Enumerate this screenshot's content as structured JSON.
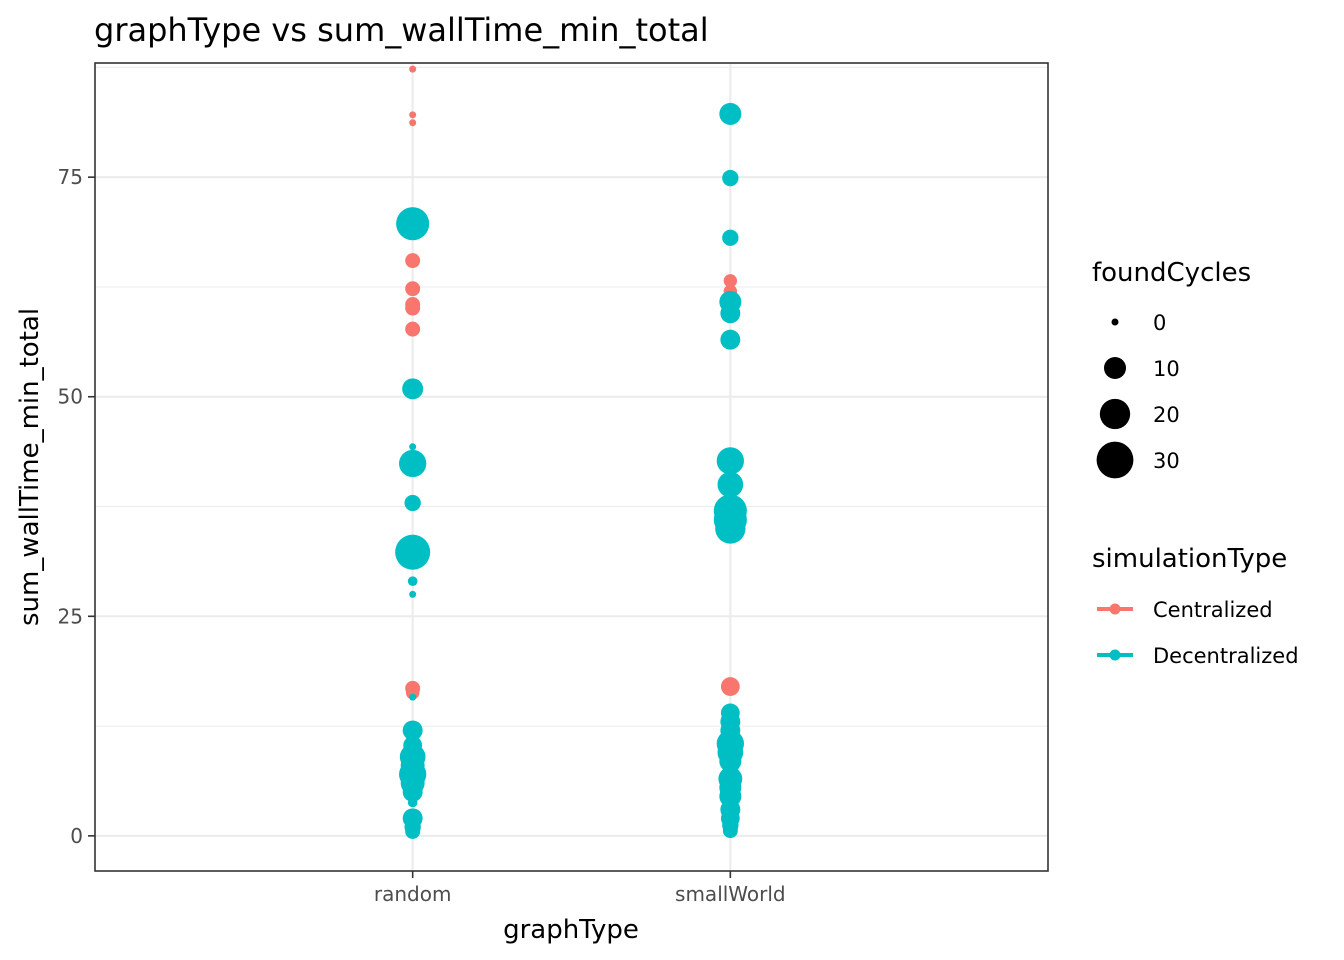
{
  "chart_data": {
    "type": "scatter",
    "title": "graphType  vs  sum_wallTime_min_total",
    "xlabel": "graphType",
    "ylabel": "sum_wallTime_min_total",
    "categories": [
      "random",
      "smallWorld"
    ],
    "ylim": [
      -4,
      88
    ],
    "y_ticks": [
      0,
      25,
      50,
      75
    ],
    "grid": true,
    "size_legend": {
      "title": "foundCycles",
      "breaks": [
        0,
        10,
        20,
        30
      ],
      "labels": [
        "0",
        "10",
        "20",
        "30"
      ],
      "range": [
        0,
        32
      ]
    },
    "color_legend": {
      "title": "simulationType",
      "entries": [
        {
          "label": "Centralized",
          "color": "#F8766D"
        },
        {
          "label": "Decentralized",
          "color": "#00BFC4"
        }
      ]
    },
    "series": [
      {
        "name": "Centralized",
        "color": "#F8766D",
        "points": [
          {
            "x": "random",
            "y": 87.3,
            "size": 0
          },
          {
            "x": "random",
            "y": 82.1,
            "size": 0
          },
          {
            "x": "random",
            "y": 81.2,
            "size": 0
          },
          {
            "x": "random",
            "y": 65.5,
            "size": 4
          },
          {
            "x": "random",
            "y": 62.3,
            "size": 4
          },
          {
            "x": "random",
            "y": 60.5,
            "size": 4
          },
          {
            "x": "random",
            "y": 60.1,
            "size": 4
          },
          {
            "x": "random",
            "y": 57.7,
            "size": 4
          },
          {
            "x": "random",
            "y": 16.8,
            "size": 4
          },
          {
            "x": "random",
            "y": 16.3,
            "size": 3
          },
          {
            "x": "random",
            "y": 10.2,
            "size": 3
          },
          {
            "x": "random",
            "y": 2.2,
            "size": 3
          },
          {
            "x": "random",
            "y": 1.5,
            "size": 3
          },
          {
            "x": "random",
            "y": 0.8,
            "size": 2
          },
          {
            "x": "smallWorld",
            "y": 63.2,
            "size": 3
          },
          {
            "x": "smallWorld",
            "y": 62.0,
            "size": 3
          },
          {
            "x": "smallWorld",
            "y": 61.0,
            "size": 3
          },
          {
            "x": "smallWorld",
            "y": 60.2,
            "size": 3
          },
          {
            "x": "smallWorld",
            "y": 59.5,
            "size": 3
          },
          {
            "x": "smallWorld",
            "y": 17.0,
            "size": 7
          },
          {
            "x": "smallWorld",
            "y": 7.5,
            "size": 3
          },
          {
            "x": "smallWorld",
            "y": 2.0,
            "size": 3
          }
        ]
      },
      {
        "name": "Decentralized",
        "color": "#00BFC4",
        "points": [
          {
            "x": "random",
            "y": 69.7,
            "size": 24
          },
          {
            "x": "random",
            "y": 50.9,
            "size": 9
          },
          {
            "x": "random",
            "y": 44.3,
            "size": 0
          },
          {
            "x": "random",
            "y": 42.4,
            "size": 16
          },
          {
            "x": "random",
            "y": 37.9,
            "size": 5
          },
          {
            "x": "random",
            "y": 32.3,
            "size": 27
          },
          {
            "x": "random",
            "y": 29.0,
            "size": 1
          },
          {
            "x": "random",
            "y": 27.5,
            "size": 0
          },
          {
            "x": "random",
            "y": 15.8,
            "size": 0
          },
          {
            "x": "random",
            "y": 12.0,
            "size": 8
          },
          {
            "x": "random",
            "y": 10.3,
            "size": 7
          },
          {
            "x": "random",
            "y": 9.0,
            "size": 14
          },
          {
            "x": "random",
            "y": 8.0,
            "size": 12
          },
          {
            "x": "random",
            "y": 7.0,
            "size": 16
          },
          {
            "x": "random",
            "y": 6.0,
            "size": 12
          },
          {
            "x": "random",
            "y": 5.0,
            "size": 8
          },
          {
            "x": "random",
            "y": 3.8,
            "size": 1
          },
          {
            "x": "random",
            "y": 2.0,
            "size": 8
          },
          {
            "x": "random",
            "y": 1.0,
            "size": 5
          },
          {
            "x": "random",
            "y": 0.5,
            "size": 4
          },
          {
            "x": "smallWorld",
            "y": 82.2,
            "size": 10
          },
          {
            "x": "smallWorld",
            "y": 74.9,
            "size": 5
          },
          {
            "x": "smallWorld",
            "y": 68.1,
            "size": 5
          },
          {
            "x": "smallWorld",
            "y": 60.8,
            "size": 10
          },
          {
            "x": "smallWorld",
            "y": 59.5,
            "size": 8
          },
          {
            "x": "smallWorld",
            "y": 56.5,
            "size": 8
          },
          {
            "x": "smallWorld",
            "y": 42.7,
            "size": 16
          },
          {
            "x": "smallWorld",
            "y": 40.0,
            "size": 14
          },
          {
            "x": "smallWorld",
            "y": 37.0,
            "size": 24
          },
          {
            "x": "smallWorld",
            "y": 36.0,
            "size": 24
          },
          {
            "x": "smallWorld",
            "y": 35.0,
            "size": 20
          },
          {
            "x": "smallWorld",
            "y": 34.2,
            "size": 5
          },
          {
            "x": "smallWorld",
            "y": 14.0,
            "size": 7
          },
          {
            "x": "smallWorld",
            "y": 13.0,
            "size": 8
          },
          {
            "x": "smallWorld",
            "y": 12.0,
            "size": 8
          },
          {
            "x": "smallWorld",
            "y": 11.0,
            "size": 10
          },
          {
            "x": "smallWorld",
            "y": 10.5,
            "size": 16
          },
          {
            "x": "smallWorld",
            "y": 9.5,
            "size": 14
          },
          {
            "x": "smallWorld",
            "y": 8.5,
            "size": 10
          },
          {
            "x": "smallWorld",
            "y": 6.5,
            "size": 12
          },
          {
            "x": "smallWorld",
            "y": 5.5,
            "size": 10
          },
          {
            "x": "smallWorld",
            "y": 4.5,
            "size": 10
          },
          {
            "x": "smallWorld",
            "y": 3.0,
            "size": 8
          },
          {
            "x": "smallWorld",
            "y": 2.0,
            "size": 7
          },
          {
            "x": "smallWorld",
            "y": 1.2,
            "size": 5
          },
          {
            "x": "smallWorld",
            "y": 0.6,
            "size": 4
          }
        ]
      }
    ]
  }
}
